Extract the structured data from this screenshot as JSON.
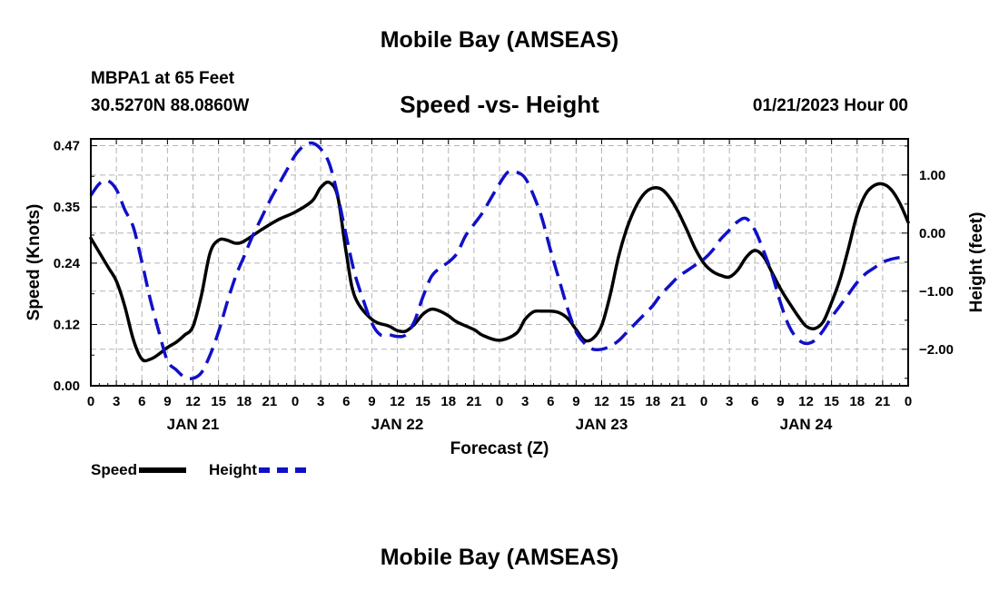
{
  "header": {
    "title": "Mobile Bay (AMSEAS)",
    "station": "MBPA1 at 65 Feet",
    "coords": "30.5270N  88.0860W",
    "plot_title": "Speed -vs- Height",
    "timestamp": "01/21/2023 Hour 00"
  },
  "footer": {
    "title": "Mobile Bay (AMSEAS)"
  },
  "legend": {
    "speed": "Speed",
    "height": "Height"
  },
  "colors": {
    "speed": "#000000",
    "height": "#1010c8",
    "grid": "#b4b4b4"
  },
  "chart_data": {
    "type": "line",
    "title": "Speed -vs- Height",
    "xlabel": "Forecast (Z)",
    "ylabel": "Speed (Knots)",
    "y2label": "Height (feet)",
    "x_range": [
      0,
      96
    ],
    "x_ticks": [
      0,
      3,
      6,
      9,
      12,
      15,
      18,
      21,
      24,
      27,
      30,
      33,
      36,
      39,
      42,
      45,
      48,
      51,
      54,
      57,
      60,
      63,
      66,
      69,
      72,
      75,
      78,
      81,
      84,
      87,
      90,
      93,
      96
    ],
    "x_tick_labels": [
      "0",
      "3",
      "6",
      "9",
      "12",
      "15",
      "18",
      "21",
      "0",
      "3",
      "6",
      "9",
      "12",
      "15",
      "18",
      "21",
      "0",
      "3",
      "6",
      "9",
      "12",
      "15",
      "18",
      "21",
      "0",
      "3",
      "6",
      "9",
      "12",
      "15",
      "18",
      "21",
      "0"
    ],
    "day_labels": [
      {
        "x": 12,
        "label": "JAN 21"
      },
      {
        "x": 36,
        "label": "JAN 22"
      },
      {
        "x": 60,
        "label": "JAN 23"
      },
      {
        "x": 84,
        "label": "JAN 24"
      }
    ],
    "ylim": [
      0,
      0.4833
    ],
    "y_ticks": [
      0.0,
      0.12,
      0.24,
      0.35,
      0.47
    ],
    "y_tick_labels": [
      "0.00",
      "0.12",
      "0.24",
      "0.35",
      "0.47"
    ],
    "y2lim": [
      -2.6285,
      1.6222
    ],
    "y2_ticks": [
      -2.0,
      -1.0,
      0.0,
      1.0
    ],
    "y2_tick_labels": [
      "−2.00",
      "−1.00",
      "0.00",
      "1.00"
    ],
    "series": [
      {
        "name": "Speed",
        "axis": "left",
        "style": "solid",
        "x": [
          0,
          2,
          3,
          4,
          5,
          6,
          7,
          8,
          9,
          10,
          11,
          12,
          13,
          14,
          15,
          16,
          17,
          18,
          20,
          22,
          24,
          26,
          27,
          28,
          29,
          30,
          31,
          33,
          35,
          36,
          37,
          38,
          39,
          40,
          41,
          42,
          43,
          45,
          46,
          48,
          50,
          51,
          52,
          53,
          54,
          55,
          56,
          57,
          58,
          59,
          60,
          61,
          62,
          63,
          64,
          65,
          66,
          67,
          68,
          69,
          70,
          71,
          72,
          73,
          74,
          75,
          76,
          77,
          78,
          79,
          80,
          81,
          82,
          83,
          84,
          85,
          86,
          87,
          88,
          89,
          90,
          91,
          92,
          93,
          94,
          95,
          96
        ],
        "values": [
          0.289,
          0.233,
          0.205,
          0.155,
          0.09,
          0.052,
          0.052,
          0.062,
          0.075,
          0.085,
          0.099,
          0.116,
          0.178,
          0.26,
          0.285,
          0.285,
          0.279,
          0.283,
          0.305,
          0.325,
          0.34,
          0.362,
          0.388,
          0.398,
          0.37,
          0.26,
          0.175,
          0.13,
          0.117,
          0.108,
          0.107,
          0.12,
          0.14,
          0.15,
          0.146,
          0.137,
          0.125,
          0.11,
          0.099,
          0.089,
          0.103,
          0.13,
          0.145,
          0.146,
          0.146,
          0.143,
          0.132,
          0.11,
          0.089,
          0.093,
          0.118,
          0.178,
          0.254,
          0.31,
          0.35,
          0.376,
          0.387,
          0.385,
          0.368,
          0.34,
          0.305,
          0.268,
          0.24,
          0.224,
          0.216,
          0.213,
          0.227,
          0.252,
          0.265,
          0.253,
          0.222,
          0.19,
          0.163,
          0.138,
          0.117,
          0.112,
          0.125,
          0.163,
          0.209,
          0.27,
          0.335,
          0.375,
          0.392,
          0.395,
          0.384,
          0.358,
          0.32
        ]
      },
      {
        "name": "Height",
        "axis": "right",
        "style": "dashed",
        "x": [
          0,
          1,
          2,
          3,
          4,
          5,
          6,
          7,
          8,
          9,
          10,
          11,
          12,
          13,
          14,
          15,
          16,
          17,
          18,
          19,
          20,
          21,
          22,
          23,
          24,
          25,
          26,
          27,
          28,
          29,
          30,
          31,
          32,
          33,
          34,
          35,
          36,
          37,
          38,
          39,
          40,
          41,
          42,
          43,
          44,
          45,
          46,
          47,
          48,
          49,
          50,
          51,
          52,
          53,
          54,
          55,
          56,
          57,
          58,
          59,
          60,
          61,
          62,
          63,
          64,
          65,
          66,
          67,
          68,
          69,
          70,
          71,
          72,
          73,
          74,
          75,
          76,
          77,
          78,
          79,
          80,
          81,
          82,
          83,
          84,
          85,
          86,
          87,
          88,
          89,
          90,
          91,
          92,
          93,
          94,
          95,
          96
        ],
        "values": [
          0.65,
          0.85,
          0.9,
          0.75,
          0.4,
          0.1,
          -0.5,
          -1.15,
          -1.7,
          -2.2,
          -2.35,
          -2.48,
          -2.5,
          -2.4,
          -2.1,
          -1.7,
          -1.2,
          -0.75,
          -0.4,
          -0.05,
          0.25,
          0.55,
          0.82,
          1.08,
          1.34,
          1.5,
          1.55,
          1.45,
          1.2,
          0.65,
          -0.05,
          -0.7,
          -1.15,
          -1.55,
          -1.75,
          -1.75,
          -1.78,
          -1.75,
          -1.52,
          -1.1,
          -0.75,
          -0.6,
          -0.5,
          -0.35,
          -0.05,
          0.15,
          0.35,
          0.6,
          0.85,
          1.05,
          1.05,
          0.95,
          0.65,
          0.25,
          -0.3,
          -0.8,
          -1.3,
          -1.7,
          -1.9,
          -2.0,
          -2.0,
          -1.95,
          -1.85,
          -1.7,
          -1.55,
          -1.4,
          -1.25,
          -1.05,
          -0.9,
          -0.75,
          -0.65,
          -0.55,
          -0.45,
          -0.3,
          -0.1,
          0.05,
          0.2,
          0.25,
          0.05,
          -0.3,
          -0.7,
          -1.2,
          -1.6,
          -1.82,
          -1.9,
          -1.85,
          -1.68,
          -1.45,
          -1.25,
          -1.05,
          -0.85,
          -0.7,
          -0.6,
          -0.5,
          -0.45,
          -0.42,
          -0.4
        ]
      }
    ]
  }
}
